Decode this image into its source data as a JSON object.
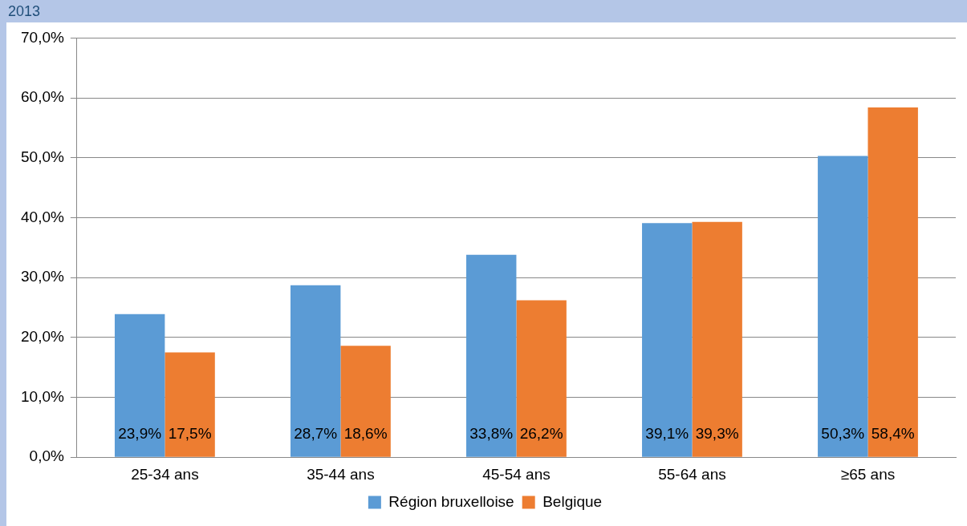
{
  "chart_data": {
    "type": "bar",
    "title": "2013",
    "categories": [
      "25-34 ans",
      "35-44 ans",
      "45-54 ans",
      "55-64 ans",
      "≥65 ans"
    ],
    "series": [
      {
        "name": "Région bruxelloise",
        "color": "#5b9bd5",
        "values": [
          23.9,
          28.7,
          33.8,
          39.1,
          50.3
        ],
        "value_labels": [
          "23,9%",
          "28,7%",
          "33,8%",
          "39,1%",
          "50,3%"
        ]
      },
      {
        "name": "Belgique",
        "color": "#ed7d31",
        "values": [
          17.5,
          18.6,
          26.2,
          39.3,
          58.4
        ],
        "value_labels": [
          "17,5%",
          "18,6%",
          "26,2%",
          "39,3%",
          "58,4%"
        ]
      }
    ],
    "ylim": [
      0,
      70
    ],
    "yticks": [
      {
        "value": 0,
        "label": "0,0%"
      },
      {
        "value": 10,
        "label": "10,0%"
      },
      {
        "value": 20,
        "label": "20,0%"
      },
      {
        "value": 30,
        "label": "30,0%"
      },
      {
        "value": 40,
        "label": "40,0%"
      },
      {
        "value": 50,
        "label": "50,0%"
      },
      {
        "value": 60,
        "label": "60,0%"
      },
      {
        "value": 70,
        "label": "70,0%"
      }
    ],
    "grid": "y",
    "legend": "bottom"
  }
}
